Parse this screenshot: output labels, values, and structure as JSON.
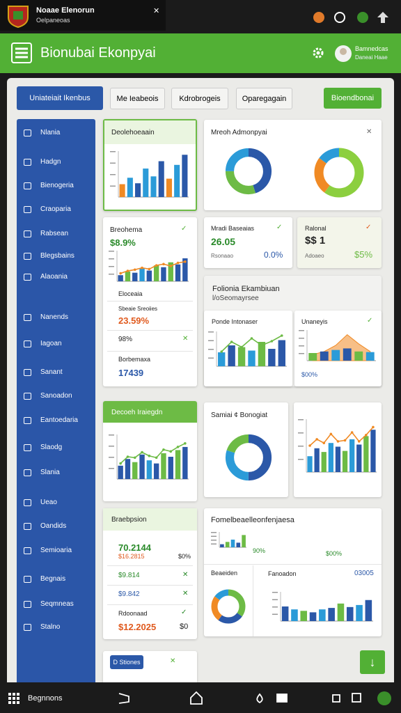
{
  "status_bar": {
    "title": "Noaae Elenorun",
    "subtitle": "Oelpaneoas"
  },
  "header": {
    "title": "Bionubai Ekonpyai",
    "user_name": "Bamnedcas",
    "user_role": "Daneai Haae"
  },
  "tabs": [
    "Uniateiait Ikenbus",
    "Me Ieabeois",
    "Kdrobrogeis",
    "Oparegagain"
  ],
  "action_button": "Bioendbonai",
  "sidebar": [
    "Nlania",
    "Hadgn",
    "Bienogeria",
    "Craoparia",
    "Rabsean",
    "Blegsbains",
    "Alaoania",
    "Nanends",
    "Iagoan",
    "Sanant",
    "Sanoadon",
    "Eantoedaria",
    "Slaodg",
    "Slania",
    "Ueao",
    "Oandids",
    "Semioaria",
    "Begnais",
    "Seqmneas",
    "Stalno"
  ],
  "overview": {
    "title": "Deolehoeaain",
    "chart": {
      "type": "bar",
      "ylim": [
        0,
        100
      ],
      "bars": {
        "values": [
          28,
          42,
          30,
          62,
          45,
          78,
          40,
          70,
          92
        ],
        "colors": [
          "#f08a24",
          "#2b9bd8",
          "#2b58a8",
          "#2b9bd8",
          "#2b9bd8",
          "#2b58a8",
          "#f08a24",
          "#2b9bd8",
          "#2b58a8"
        ]
      }
    }
  },
  "breakdown": {
    "title": "Breohema",
    "value": "$8.9%",
    "chart": {
      "type": "combo",
      "ylim": [
        0,
        100
      ],
      "bars": {
        "values": [
          20,
          32,
          28,
          42,
          35,
          52,
          46,
          62,
          55,
          75
        ],
        "colors": [
          "#2b58a8",
          "#6dbb45",
          "#2b58a8",
          "#2b9bd8",
          "#2b58a8",
          "#6dbb45",
          "#2b58a8",
          "#6dbb45",
          "#2b58a8",
          "#2b58a8"
        ]
      },
      "line": {
        "color": "#f08a24",
        "values": [
          26,
          34,
          38,
          44,
          40,
          52,
          56,
          50,
          60,
          64
        ]
      }
    },
    "list_title": "Eloceaia",
    "rows": [
      {
        "label": "Sbeaie Sreoiies",
        "value": "23.59%"
      },
      {
        "value": "98%"
      },
      {
        "label": "Borbemaxa",
        "value": "17439"
      }
    ]
  },
  "trend": {
    "title": "Decoeh Iraiegdn",
    "chart": {
      "type": "combo",
      "ylim": [
        0,
        100
      ],
      "bars": {
        "values": [
          30,
          45,
          38,
          55,
          42,
          35,
          58,
          50,
          65,
          72
        ],
        "colors": [
          "#2b58a8",
          "#2b58a8",
          "#6dbb45",
          "#2b58a8",
          "#2b9bd8",
          "#2b58a8",
          "#6dbb45",
          "#2b58a8",
          "#6dbb45",
          "#2b58a8"
        ]
      },
      "line": {
        "color": "#6dbb45",
        "values": [
          35,
          50,
          48,
          60,
          52,
          48,
          66,
          62,
          72,
          80
        ]
      }
    }
  },
  "distribution": {
    "title": "Braebpsion",
    "rows": [
      {
        "value": "70.2144"
      },
      {
        "value": "$16.2815",
        "extra": "$0%"
      },
      {
        "value": "$9.814"
      },
      {
        "value": "$9.842"
      },
      {
        "label": "Rdoonaad",
        "value": "$12.2025",
        "extra": "$0"
      }
    ]
  },
  "summary": {
    "title": "Mreoh Admonpyai",
    "donuts": [
      {
        "type": "donut",
        "values": [
          45,
          30,
          25
        ],
        "colors": [
          "#2b58a8",
          "#6dbb45",
          "#2b9bd8"
        ]
      },
      {
        "type": "donut",
        "values": [
          60,
          25,
          15
        ],
        "colors": [
          "#8ccf3f",
          "#f08a24",
          "#2b9bd8"
        ]
      }
    ]
  },
  "kpi1": {
    "title": "Mradi Baseaias",
    "value": "26.05",
    "sub": "Rsonaao",
    "change": "0.0%"
  },
  "kpi2": {
    "title": "Ralonal",
    "value": "$$ 1",
    "sub": "Adoaeo",
    "change": "$5%"
  },
  "portfolio": {
    "title": "Folionia Ekambiuan",
    "subtitle": "l/oSeomayrsee",
    "left": {
      "title": "Ponde Intonaser",
      "chart": {
        "type": "combo",
        "ylim": [
          0,
          100
        ],
        "bars": {
          "values": [
            40,
            60,
            55,
            45,
            70,
            50,
            75
          ],
          "colors": [
            "#2b9bd8",
            "#2b58a8",
            "#6dbb45",
            "#2b9bd8",
            "#6dbb45",
            "#2b58a8",
            "#2b58a8"
          ]
        },
        "line": {
          "color": "#6dbb45",
          "values": [
            42,
            70,
            55,
            80,
            60,
            72,
            88
          ]
        }
      }
    },
    "right": {
      "title": "Unaneyis",
      "note": "$00%",
      "chart": {
        "type": "area",
        "ylim": [
          0,
          100
        ],
        "area": {
          "color": "#f08a24",
          "values": [
            20,
            30,
            50,
            85,
            55,
            30
          ]
        },
        "bars": {
          "values": [
            25,
            30,
            35,
            40,
            30,
            28
          ],
          "colors": [
            "#6dbb45",
            "#2b58a8",
            "#2b9bd8",
            "#2b58a8",
            "#6dbb45",
            "#2b9bd8"
          ]
        }
      }
    }
  },
  "segment": {
    "title": "Samiai ¢ Bonogiat",
    "chart": {
      "type": "donut",
      "values": [
        50,
        30,
        20
      ],
      "colors": [
        "#2b58a8",
        "#2b9bd8",
        "#6dbb45"
      ]
    }
  },
  "growth": {
    "chart": {
      "type": "combo",
      "ylim": [
        0,
        100
      ],
      "bars": {
        "values": [
          30,
          45,
          38,
          55,
          48,
          40,
          62,
          52,
          68,
          80
        ],
        "colors": [
          "#2b9bd8",
          "#2b58a8",
          "#6dbb45",
          "#2b9bd8",
          "#2b58a8",
          "#6dbb45",
          "#2b9bd8",
          "#2b58a8",
          "#6dbb45",
          "#2b58a8"
        ]
      },
      "line": {
        "color": "#f08a24",
        "values": [
          50,
          62,
          55,
          72,
          58,
          60,
          75,
          58,
          70,
          85
        ]
      }
    }
  },
  "performance": {
    "title": "Fomelbeaelleonfenjaesa",
    "stats": [
      "90%",
      "$00%"
    ],
    "left_title": "Beaeiden",
    "right_title": "Fanoadon",
    "right_value": "03005",
    "mini": {
      "type": "bar",
      "ylim": [
        0,
        100
      ],
      "bars": {
        "values": [
          20,
          35,
          50,
          30,
          80
        ],
        "colors": [
          "#2b58a8",
          "#6dbb45",
          "#2b9bd8",
          "#2b58a8",
          "#6dbb45"
        ]
      }
    },
    "donut": {
      "type": "donut",
      "values": [
        35,
        25,
        25,
        15
      ],
      "colors": [
        "#6dbb45",
        "#2b58a8",
        "#f08a24",
        "#2b9bd8"
      ]
    },
    "bars": {
      "type": "bar",
      "ylim": [
        0,
        100
      ],
      "bars": {
        "values": [
          50,
          40,
          35,
          30,
          40,
          45,
          60,
          48,
          55,
          72
        ],
        "colors": [
          "#2b58a8",
          "#2b9bd8",
          "#6dbb45",
          "#2b58a8",
          "#2b9bd8",
          "#2b58a8",
          "#6dbb45",
          "#2b58a8",
          "#2b9bd8",
          "#2b58a8"
        ]
      }
    }
  },
  "footer_card": {
    "button": "D Stiones"
  },
  "bottom_bar": {
    "label": "Begnnons"
  }
}
